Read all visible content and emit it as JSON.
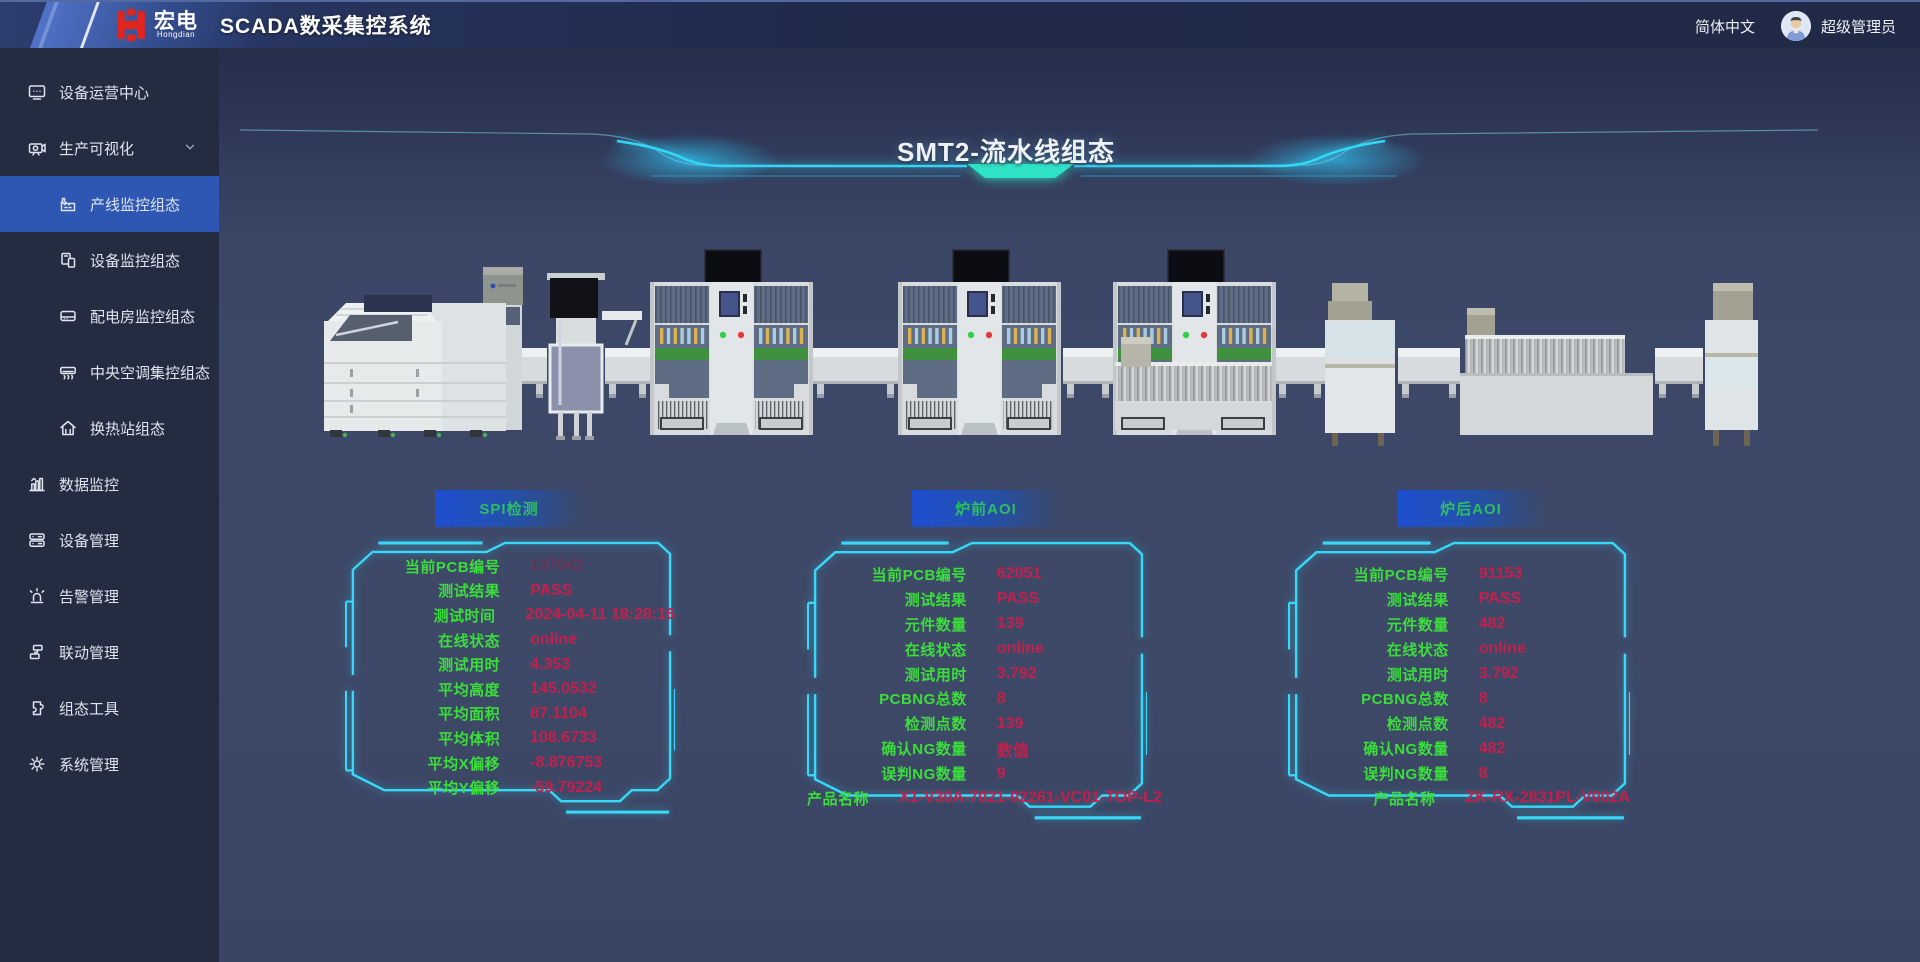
{
  "header": {
    "logo_text": "宏电",
    "logo_sub": "Hongdian",
    "app_title": "SCADA数采集控系统",
    "language": "简体中文",
    "user": "超级管理员"
  },
  "sidebar": {
    "items": [
      {
        "label": "设备运营中心",
        "icon": "monitor-icon"
      },
      {
        "label": "生产可视化",
        "icon": "projector-icon",
        "expanded": true,
        "children": [
          {
            "label": "产线监控组态",
            "icon": "factory-icon",
            "selected": true
          },
          {
            "label": "设备监控组态",
            "icon": "device-icon"
          },
          {
            "label": "配电房监控组态",
            "icon": "power-room-icon"
          },
          {
            "label": "中央空调集控组态",
            "icon": "hvac-icon"
          },
          {
            "label": "换热站组态",
            "icon": "heat-station-icon"
          }
        ]
      },
      {
        "label": "数据监控",
        "icon": "bar-chart-icon"
      },
      {
        "label": "设备管理",
        "icon": "server-icon"
      },
      {
        "label": "告警管理",
        "icon": "alarm-icon"
      },
      {
        "label": "联动管理",
        "icon": "linkage-icon"
      },
      {
        "label": "组态工具",
        "icon": "puzzle-icon"
      },
      {
        "label": "系统管理",
        "icon": "gear-icon"
      }
    ]
  },
  "main": {
    "title": "SMT2-流水线组态",
    "panels": [
      {
        "badge": "SPI检测",
        "rows": [
          [
            "当前PCB编号",
            "137042",
            "muted"
          ],
          [
            "测试结果",
            "PASS"
          ],
          [
            "测试时间",
            "2024-04-11 18:28:16"
          ],
          [
            "在线状态",
            "online"
          ],
          [
            "测试用时",
            "4.353"
          ],
          [
            "平均高度",
            "145.0532"
          ],
          [
            "平均面积",
            "87.1104"
          ],
          [
            "平均体积",
            "108.6733"
          ],
          [
            "平均X偏移",
            "-8.876753"
          ],
          [
            "平均Y偏移",
            "-59.79224"
          ]
        ]
      },
      {
        "badge": "炉前AOI",
        "rows": [
          [
            "当前PCB编号",
            "62051"
          ],
          [
            "测试结果",
            "PASS"
          ],
          [
            "元件数量",
            "139"
          ],
          [
            "在线状态",
            "online"
          ],
          [
            "测试用时",
            "3.792"
          ],
          [
            "PCBNG总数",
            "8"
          ],
          [
            "检测点数",
            "139"
          ],
          [
            "确认NG数量",
            "数值"
          ],
          [
            "误判NG数量",
            "9"
          ],
          [
            "产品名称",
            "X1-V30A-7021-02261-VC01-TOP-L2"
          ]
        ]
      },
      {
        "badge": "炉后AOI",
        "rows": [
          [
            "当前PCB编号",
            "91153"
          ],
          [
            "测试结果",
            "PASS"
          ],
          [
            "元件数量",
            "482"
          ],
          [
            "在线状态",
            "online"
          ],
          [
            "测试用时",
            "3.792"
          ],
          [
            "PCBNG总数",
            "8"
          ],
          [
            "检测点数",
            "482"
          ],
          [
            "确认NG数量",
            "482"
          ],
          [
            "误判NG数量",
            "8"
          ],
          [
            "产品名称",
            "ZK-RX-2831PL-V002A"
          ]
        ]
      }
    ]
  },
  "colors": {
    "accent_cyan": "#38d8f8",
    "label_green": "#3bdd3b",
    "value_red": "#c51f4b",
    "badge_text_green": "#2dbd62",
    "badge_blue": "#1e4fd0",
    "sidebar_selected_blue": "#2e57b4",
    "led_green": "#2fd24a",
    "led_red": "#e23b3b",
    "title_teal": "#2fe3c6"
  }
}
